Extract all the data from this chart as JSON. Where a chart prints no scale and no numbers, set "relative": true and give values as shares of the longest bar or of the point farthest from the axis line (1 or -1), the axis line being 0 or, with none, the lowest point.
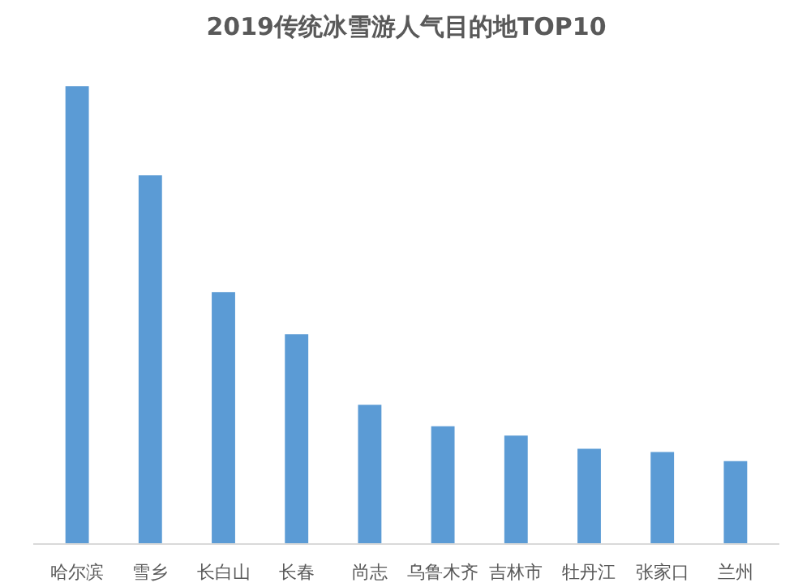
{
  "chart_data": {
    "type": "bar",
    "title": "2019传统冰雪游人气目的地TOP10",
    "relative": true,
    "categories": [
      "哈尔滨",
      "雪乡",
      "长白山",
      "长春",
      "尚志",
      "乌鲁木齐",
      "吉林市",
      "牡丹江",
      "张家口",
      "兰州"
    ],
    "values": [
      1,
      0.805,
      0.55,
      0.458,
      0.304,
      0.257,
      0.237,
      0.208,
      0.201,
      0.181
    ],
    "color": "#5b9bd5"
  }
}
